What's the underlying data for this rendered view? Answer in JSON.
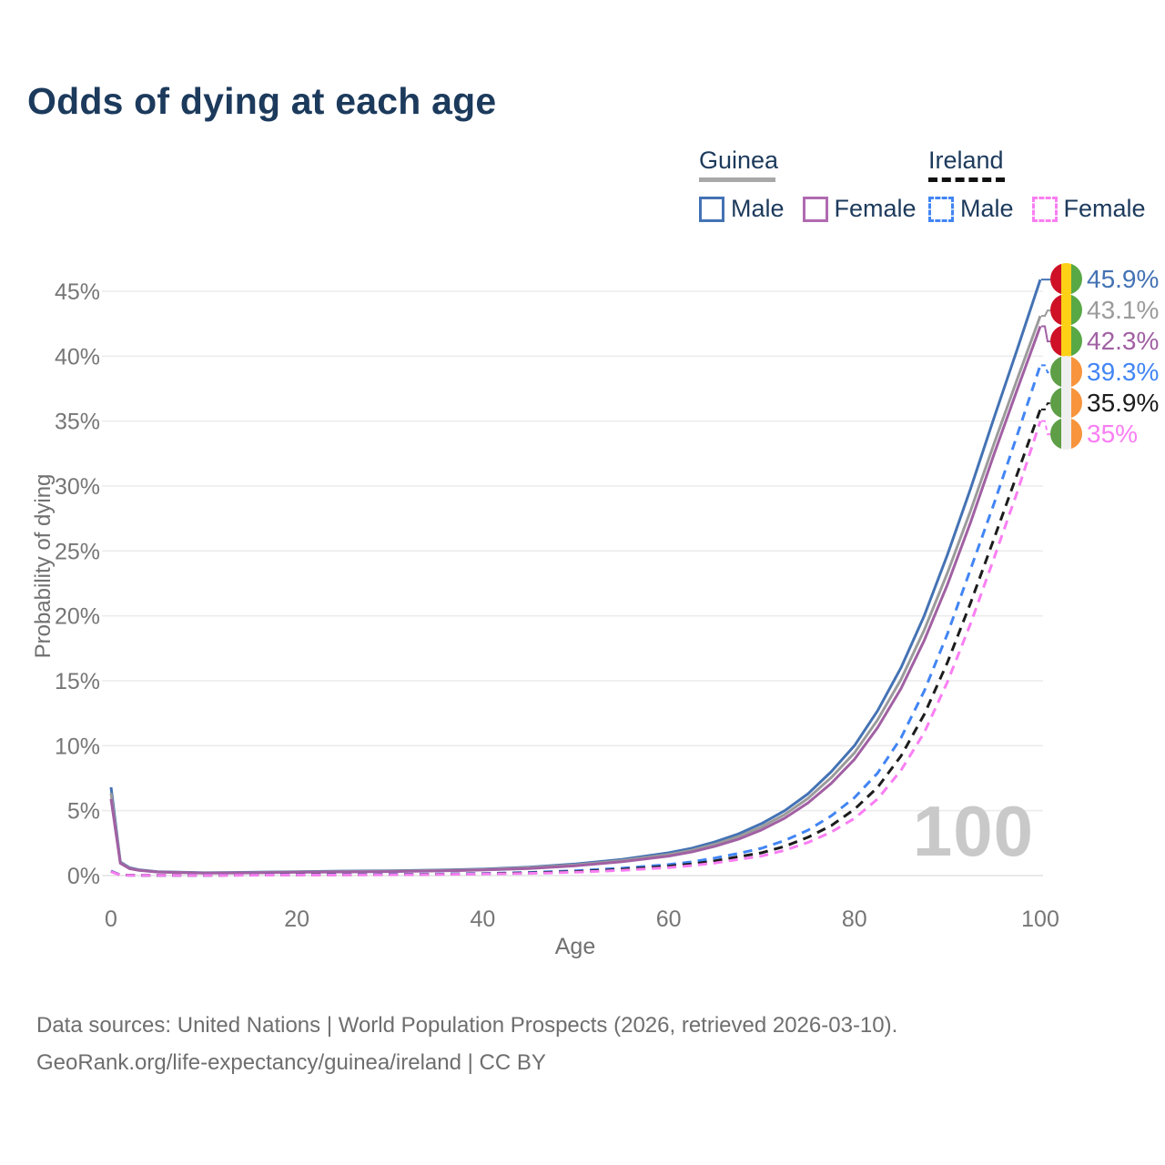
{
  "page": {
    "title": "Odds of dying at each age",
    "watermark": "100",
    "sources_line1": "Data sources: United Nations | World Population Prospects (2026, retrieved 2026-03-10).",
    "sources_line2": "GeoRank.org/life-expectancy/guinea/ireland | CC BY"
  },
  "legend": {
    "groups": [
      {
        "country": "Guinea",
        "line_style": "solid",
        "line_color": "#a8a8a8",
        "items": [
          {
            "label": "Male",
            "color": "#4472b4",
            "dash": false
          },
          {
            "label": "Female",
            "color": "#b06ab0",
            "dash": false
          }
        ]
      },
      {
        "country": "Ireland",
        "line_style": "dashed",
        "line_color": "#111111",
        "items": [
          {
            "label": "Male",
            "color": "#4285f4",
            "dash": true
          },
          {
            "label": "Female",
            "color": "#f97ef2",
            "dash": true
          }
        ]
      }
    ]
  },
  "flags": {
    "guinea": [
      "#ce1126",
      "#fcd116",
      "#58a846"
    ],
    "ireland": [
      "#5d9e47",
      "#efefef",
      "#f8943c"
    ]
  },
  "chart_data": {
    "type": "line",
    "title": "Odds of dying at each age",
    "xlabel": "Age",
    "ylabel": "Probability of dying",
    "x_unit": "years",
    "y_unit": "percent",
    "xlim": [
      0,
      100
    ],
    "ylim": [
      0,
      46
    ],
    "x_ticks": [
      0,
      20,
      40,
      60,
      80,
      100
    ],
    "y_ticks": [
      0,
      5,
      10,
      15,
      20,
      25,
      30,
      35,
      40,
      45
    ],
    "grid": "horizontal",
    "legend_position": "top-right",
    "series": [
      {
        "name": "guinea-male",
        "country": "Guinea",
        "sex": "Male",
        "color": "#4472b4",
        "dash": false,
        "flag": "guinea",
        "end_label": "45.9%",
        "points": [
          [
            0,
            6.8
          ],
          [
            1,
            1.05
          ],
          [
            2,
            0.6
          ],
          [
            3,
            0.45
          ],
          [
            5,
            0.3
          ],
          [
            10,
            0.22
          ],
          [
            15,
            0.25
          ],
          [
            20,
            0.3
          ],
          [
            25,
            0.34
          ],
          [
            30,
            0.37
          ],
          [
            35,
            0.42
          ],
          [
            40,
            0.5
          ],
          [
            45,
            0.65
          ],
          [
            50,
            0.9
          ],
          [
            55,
            1.25
          ],
          [
            60,
            1.75
          ],
          [
            62.5,
            2.1
          ],
          [
            65,
            2.6
          ],
          [
            67.5,
            3.2
          ],
          [
            70,
            4.0
          ],
          [
            72.5,
            5.0
          ],
          [
            75,
            6.3
          ],
          [
            77.5,
            8.0
          ],
          [
            80,
            10.0
          ],
          [
            82.5,
            12.7
          ],
          [
            85,
            16.0
          ],
          [
            87.5,
            20.0
          ],
          [
            90,
            24.7
          ],
          [
            92.5,
            29.8
          ],
          [
            95,
            35.2
          ],
          [
            97.5,
            40.5
          ],
          [
            100,
            45.9
          ]
        ]
      },
      {
        "name": "guinea-all",
        "country": "Guinea",
        "sex": "Both",
        "color": "#9b9b9b",
        "dash": false,
        "flag": "guinea",
        "end_label": "43.1%",
        "points": [
          [
            0,
            6.35
          ],
          [
            1,
            1.0
          ],
          [
            2,
            0.56
          ],
          [
            3,
            0.42
          ],
          [
            5,
            0.28
          ],
          [
            10,
            0.2
          ],
          [
            15,
            0.23
          ],
          [
            20,
            0.28
          ],
          [
            25,
            0.31
          ],
          [
            30,
            0.34
          ],
          [
            35,
            0.39
          ],
          [
            40,
            0.46
          ],
          [
            45,
            0.6
          ],
          [
            50,
            0.83
          ],
          [
            55,
            1.16
          ],
          [
            60,
            1.62
          ],
          [
            62.5,
            1.95
          ],
          [
            65,
            2.42
          ],
          [
            67.5,
            3.0
          ],
          [
            70,
            3.75
          ],
          [
            72.5,
            4.7
          ],
          [
            75,
            5.95
          ],
          [
            77.5,
            7.55
          ],
          [
            80,
            9.45
          ],
          [
            82.5,
            12.0
          ],
          [
            85,
            15.1
          ],
          [
            87.5,
            18.9
          ],
          [
            90,
            23.3
          ],
          [
            92.5,
            28.1
          ],
          [
            95,
            33.2
          ],
          [
            97.5,
            38.2
          ],
          [
            100,
            43.1
          ]
        ]
      },
      {
        "name": "guinea-female",
        "country": "Guinea",
        "sex": "Female",
        "color": "#a160a3",
        "dash": false,
        "flag": "guinea",
        "end_label": "42.3%",
        "points": [
          [
            0,
            5.9
          ],
          [
            1,
            0.95
          ],
          [
            2,
            0.53
          ],
          [
            3,
            0.4
          ],
          [
            5,
            0.27
          ],
          [
            10,
            0.19
          ],
          [
            15,
            0.21
          ],
          [
            20,
            0.25
          ],
          [
            25,
            0.28
          ],
          [
            30,
            0.31
          ],
          [
            35,
            0.36
          ],
          [
            40,
            0.43
          ],
          [
            45,
            0.55
          ],
          [
            50,
            0.76
          ],
          [
            55,
            1.07
          ],
          [
            60,
            1.5
          ],
          [
            62.5,
            1.82
          ],
          [
            65,
            2.26
          ],
          [
            67.5,
            2.8
          ],
          [
            70,
            3.52
          ],
          [
            72.5,
            4.42
          ],
          [
            75,
            5.6
          ],
          [
            77.5,
            7.1
          ],
          [
            80,
            8.95
          ],
          [
            82.5,
            11.4
          ],
          [
            85,
            14.4
          ],
          [
            87.5,
            18.1
          ],
          [
            90,
            22.4
          ],
          [
            92.5,
            27.2
          ],
          [
            95,
            32.4
          ],
          [
            97.5,
            37.4
          ],
          [
            100,
            42.3
          ]
        ]
      },
      {
        "name": "ireland-male",
        "country": "Ireland",
        "sex": "Male",
        "color": "#4285f4",
        "dash": true,
        "flag": "ireland",
        "end_label": "39.3%",
        "points": [
          [
            0,
            0.35
          ],
          [
            1,
            0.04
          ],
          [
            2,
            0.03
          ],
          [
            3,
            0.02
          ],
          [
            5,
            0.02
          ],
          [
            10,
            0.02
          ],
          [
            15,
            0.04
          ],
          [
            20,
            0.07
          ],
          [
            25,
            0.08
          ],
          [
            30,
            0.1
          ],
          [
            35,
            0.12
          ],
          [
            40,
            0.16
          ],
          [
            45,
            0.24
          ],
          [
            50,
            0.37
          ],
          [
            55,
            0.57
          ],
          [
            60,
            0.85
          ],
          [
            62.5,
            1.05
          ],
          [
            65,
            1.35
          ],
          [
            67.5,
            1.7
          ],
          [
            70,
            2.1
          ],
          [
            72.5,
            2.7
          ],
          [
            75,
            3.5
          ],
          [
            77.5,
            4.6
          ],
          [
            80,
            6.0
          ],
          [
            82.5,
            7.9
          ],
          [
            85,
            10.6
          ],
          [
            87.5,
            14.2
          ],
          [
            90,
            18.6
          ],
          [
            92.5,
            23.6
          ],
          [
            95,
            28.6
          ],
          [
            97.5,
            33.9
          ],
          [
            100,
            39.3
          ]
        ]
      },
      {
        "name": "ireland-all",
        "country": "Ireland",
        "sex": "Both",
        "color": "#1c1c1c",
        "dash": true,
        "flag": "ireland",
        "end_label": "35.9%",
        "points": [
          [
            0,
            0.32
          ],
          [
            1,
            0.035
          ],
          [
            2,
            0.025
          ],
          [
            3,
            0.02
          ],
          [
            5,
            0.017
          ],
          [
            10,
            0.017
          ],
          [
            15,
            0.033
          ],
          [
            20,
            0.055
          ],
          [
            25,
            0.065
          ],
          [
            30,
            0.08
          ],
          [
            35,
            0.1
          ],
          [
            40,
            0.14
          ],
          [
            45,
            0.2
          ],
          [
            50,
            0.31
          ],
          [
            55,
            0.48
          ],
          [
            60,
            0.72
          ],
          [
            62.5,
            0.89
          ],
          [
            65,
            1.13
          ],
          [
            67.5,
            1.45
          ],
          [
            70,
            1.75
          ],
          [
            72.5,
            2.25
          ],
          [
            75,
            2.95
          ],
          [
            77.5,
            3.85
          ],
          [
            80,
            5.1
          ],
          [
            82.5,
            6.8
          ],
          [
            85,
            9.2
          ],
          [
            87.5,
            12.4
          ],
          [
            90,
            16.4
          ],
          [
            92.5,
            21.0
          ],
          [
            95,
            25.9
          ],
          [
            97.5,
            30.9
          ],
          [
            100,
            35.9
          ]
        ]
      },
      {
        "name": "ireland-female",
        "country": "Ireland",
        "sex": "Female",
        "color": "#f97ef2",
        "dash": true,
        "flag": "ireland",
        "end_label": "35%",
        "points": [
          [
            0,
            0.3
          ],
          [
            1,
            0.03
          ],
          [
            2,
            0.02
          ],
          [
            3,
            0.015
          ],
          [
            5,
            0.015
          ],
          [
            10,
            0.015
          ],
          [
            15,
            0.028
          ],
          [
            20,
            0.04
          ],
          [
            25,
            0.05
          ],
          [
            30,
            0.065
          ],
          [
            35,
            0.085
          ],
          [
            40,
            0.12
          ],
          [
            45,
            0.17
          ],
          [
            50,
            0.26
          ],
          [
            55,
            0.41
          ],
          [
            60,
            0.62
          ],
          [
            62.5,
            0.77
          ],
          [
            65,
            0.97
          ],
          [
            67.5,
            1.24
          ],
          [
            70,
            1.5
          ],
          [
            72.5,
            1.95
          ],
          [
            75,
            2.55
          ],
          [
            77.5,
            3.35
          ],
          [
            80,
            4.4
          ],
          [
            82.5,
            5.9
          ],
          [
            85,
            8.1
          ],
          [
            87.5,
            11.0
          ],
          [
            90,
            14.9
          ],
          [
            92.5,
            19.4
          ],
          [
            95,
            24.4
          ],
          [
            97.5,
            29.5
          ],
          [
            100,
            35.0
          ]
        ]
      }
    ]
  }
}
